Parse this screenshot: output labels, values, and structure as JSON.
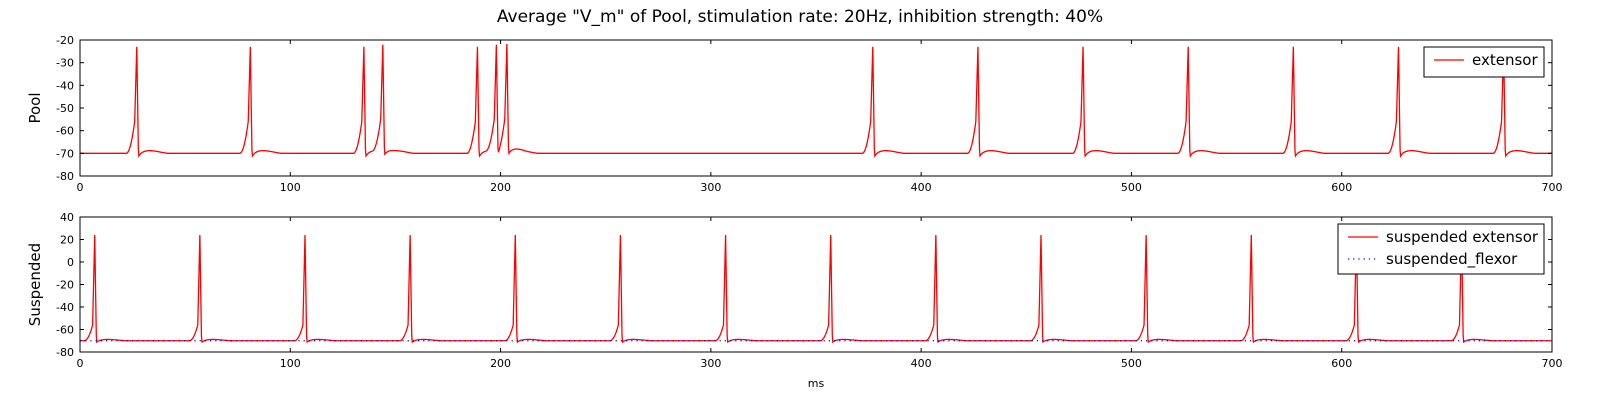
{
  "title": "Average \"V_m\" of Pool, stimulation rate: 20Hz, inhibition strength: 40%",
  "chart_data": [
    {
      "type": "line",
      "ylabel": "Pool",
      "xlabel": "",
      "xlim": [
        0,
        700
      ],
      "ylim": [
        -80,
        -20
      ],
      "xticks": [
        0,
        100,
        200,
        300,
        400,
        500,
        600,
        700
      ],
      "yticks": [
        -80,
        -70,
        -60,
        -50,
        -40,
        -30,
        -20
      ],
      "grid": false,
      "legend_position": "top-right",
      "rest_potential": -70,
      "spike_peak": -23,
      "series": [
        {
          "name": "extensor",
          "color": "#ff0000",
          "style": "solid",
          "spike_times": [
            27,
            81,
            135,
            144,
            189,
            198,
            203,
            377,
            427,
            477,
            527,
            577,
            627,
            677
          ]
        }
      ]
    },
    {
      "type": "line",
      "ylabel": "Suspended",
      "xlabel": "ms",
      "xlim": [
        0,
        700
      ],
      "ylim": [
        -80,
        40
      ],
      "xticks": [
        0,
        100,
        200,
        300,
        400,
        500,
        600,
        700
      ],
      "yticks": [
        -80,
        -60,
        -40,
        -20,
        0,
        20,
        40
      ],
      "grid": false,
      "legend_position": "top-right",
      "rest_potential": -70,
      "spike_peak": 24,
      "series": [
        {
          "name": "suspended extensor",
          "color": "#ff0000",
          "style": "solid",
          "spike_times": [
            7,
            57,
            107,
            157,
            207,
            257,
            307,
            357,
            407,
            457,
            507,
            557,
            607,
            657
          ]
        },
        {
          "name": "suspended_flexor",
          "color": "#0000ff",
          "style": "dotted",
          "constant_value": -70
        }
      ]
    }
  ]
}
